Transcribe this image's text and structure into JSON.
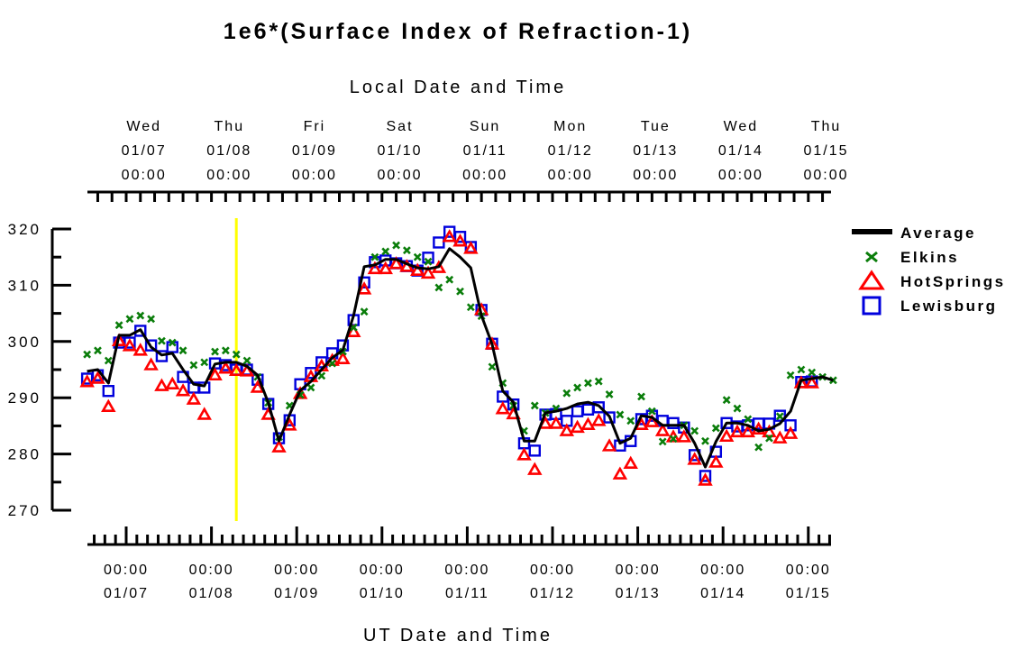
{
  "chart_data": {
    "type": "line",
    "title": "1e6*(Surface Index of Refraction-1)",
    "top_axis_label": "Local Date and Time",
    "bottom_axis_label": "UT Date and Time",
    "ylim": [
      270,
      320
    ],
    "y_ticks": [
      270,
      280,
      290,
      300,
      310,
      320
    ],
    "y_tick_labels": [
      "270",
      "280",
      "290",
      "300",
      "310",
      "320"
    ],
    "x_units": "UT hours since 01/07 00:00",
    "xlim_hours": [
      -11,
      199
    ],
    "top_ticks": [
      {
        "day": "Wed",
        "date": "01/07",
        "time": "00:00"
      },
      {
        "day": "Thu",
        "date": "01/08",
        "time": "00:00"
      },
      {
        "day": "Fri",
        "date": "01/09",
        "time": "00:00"
      },
      {
        "day": "Sat",
        "date": "01/10",
        "time": "00:00"
      },
      {
        "day": "Sun",
        "date": "01/11",
        "time": "00:00"
      },
      {
        "day": "Mon",
        "date": "01/12",
        "time": "00:00"
      },
      {
        "day": "Tue",
        "date": "01/13",
        "time": "00:00"
      },
      {
        "day": "Wed",
        "date": "01/14",
        "time": "00:00"
      },
      {
        "day": "Thu",
        "date": "01/15",
        "time": "00:00"
      }
    ],
    "local_offset_hours": -5,
    "bottom_ticks": [
      {
        "time": "00:00",
        "date": "01/07"
      },
      {
        "time": "00:00",
        "date": "01/08"
      },
      {
        "time": "00:00",
        "date": "01/09"
      },
      {
        "time": "00:00",
        "date": "01/10"
      },
      {
        "time": "00:00",
        "date": "01/11"
      },
      {
        "time": "00:00",
        "date": "01/12"
      },
      {
        "time": "00:00",
        "date": "01/13"
      },
      {
        "time": "00:00",
        "date": "01/14"
      },
      {
        "time": "00:00",
        "date": "01/15"
      }
    ],
    "marker_line_hours": 31,
    "time_start_hours": -11,
    "time_step_hours": 3,
    "series": [
      {
        "name": "Average",
        "style": "line",
        "color": "#000000",
        "values": [
          294.7,
          295.0,
          292.6,
          301.1,
          301.1,
          302.1,
          299.0,
          297.6,
          297.9,
          295.0,
          292.4,
          292.1,
          296.0,
          296.3,
          296.3,
          295.6,
          294.0,
          289.1,
          282.3,
          287.0,
          291.3,
          292.9,
          295.0,
          297.1,
          298.5,
          304.6,
          313.3,
          313.6,
          314.6,
          314.6,
          313.8,
          313.1,
          312.9,
          313.3,
          316.5,
          315.0,
          313.1,
          304.6,
          299.5,
          291.2,
          289.2,
          282.3,
          282.3,
          287.3,
          287.6,
          288.1,
          288.9,
          289.2,
          288.6,
          286.7,
          281.9,
          282.8,
          286.8,
          286.5,
          285.1,
          285.1,
          285.1,
          281.9,
          277.7,
          282.2,
          285.5,
          285.5,
          285.1,
          284.1,
          284.4,
          285.4,
          287.6,
          293.1,
          293.4,
          293.7,
          293.1
        ]
      },
      {
        "name": "Elkins",
        "style": "x",
        "color": "#0a7d0a",
        "values": [
          297.7,
          298.4,
          296.6,
          302.9,
          304.0,
          304.6,
          304.0,
          300.1,
          299.8,
          298.4,
          295.8,
          296.3,
          298.2,
          298.4,
          297.7,
          296.6,
          293.7,
          289.1,
          283.0,
          288.6,
          290.5,
          291.8,
          293.9,
          296.1,
          298.2,
          302.5,
          305.3,
          315.0,
          316.0,
          317.1,
          316.2,
          315.0,
          314.2,
          309.6,
          311.0,
          308.9,
          306.1,
          304.5,
          295.5,
          292.6,
          288.6,
          284.1,
          288.6,
          287.3,
          288.1,
          290.8,
          291.8,
          292.6,
          292.9,
          290.6,
          287.0,
          285.9,
          290.2,
          287.6,
          282.2,
          282.7,
          285.1,
          284.1,
          282.3,
          284.6,
          289.6,
          288.1,
          286.2,
          281.2,
          282.8,
          286.7,
          294.0,
          295.0,
          294.5,
          293.7,
          293.1
        ]
      },
      {
        "name": "HotSprings",
        "style": "triangle",
        "color": "#ff0000",
        "values": [
          292.8,
          293.4,
          288.4,
          300.1,
          299.2,
          298.4,
          295.8,
          292.1,
          292.4,
          291.2,
          289.7,
          287.0,
          294.0,
          295.2,
          294.8,
          294.7,
          291.8,
          287.0,
          281.2,
          285.1,
          290.7,
          293.7,
          295.6,
          296.6,
          296.9,
          301.7,
          309.3,
          312.9,
          312.9,
          313.8,
          313.3,
          312.6,
          312.1,
          313.1,
          318.6,
          317.8,
          316.5,
          305.6,
          299.5,
          288.0,
          287.1,
          279.8,
          277.2,
          285.4,
          285.4,
          284.1,
          284.7,
          285.2,
          285.9,
          281.4,
          276.4,
          278.3,
          285.2,
          285.7,
          284.1,
          283.0,
          283.0,
          279.0,
          275.3,
          278.5,
          283.1,
          283.9,
          283.9,
          284.4,
          283.9,
          282.8,
          283.6,
          292.6,
          292.6
        ]
      },
      {
        "name": "Lewisburg",
        "style": "square",
        "color": "#0000dd",
        "values": [
          293.4,
          294.0,
          291.2,
          299.8,
          299.8,
          301.9,
          299.3,
          297.4,
          299.0,
          293.7,
          291.8,
          291.8,
          296.1,
          295.8,
          295.0,
          295.0,
          293.2,
          288.9,
          282.8,
          286.0,
          292.4,
          294.4,
          296.3,
          297.9,
          299.3,
          303.8,
          310.5,
          314.1,
          314.4,
          313.9,
          313.4,
          312.6,
          314.9,
          317.6,
          319.5,
          318.6,
          316.8,
          305.6,
          299.6,
          290.2,
          288.8,
          281.9,
          280.6,
          287.0,
          287.1,
          285.9,
          287.6,
          287.9,
          288.3,
          286.5,
          281.5,
          282.3,
          286.2,
          286.8,
          285.9,
          285.5,
          284.7,
          279.8,
          276.1,
          280.4,
          285.5,
          284.9,
          285.1,
          285.4,
          285.4,
          286.8,
          285.1,
          292.8,
          292.9
        ]
      }
    ],
    "legend": [
      {
        "label": "Average",
        "symbol": "line",
        "color": "#000000"
      },
      {
        "label": "Elkins",
        "symbol": "x",
        "color": "#0a7d0a"
      },
      {
        "label": "HotSprings",
        "symbol": "triangle",
        "color": "#ff0000"
      },
      {
        "label": "Lewisburg",
        "symbol": "square",
        "color": "#0000dd"
      }
    ],
    "legend_position": "right",
    "marker_line_color": "#ffff00",
    "grid": false
  }
}
